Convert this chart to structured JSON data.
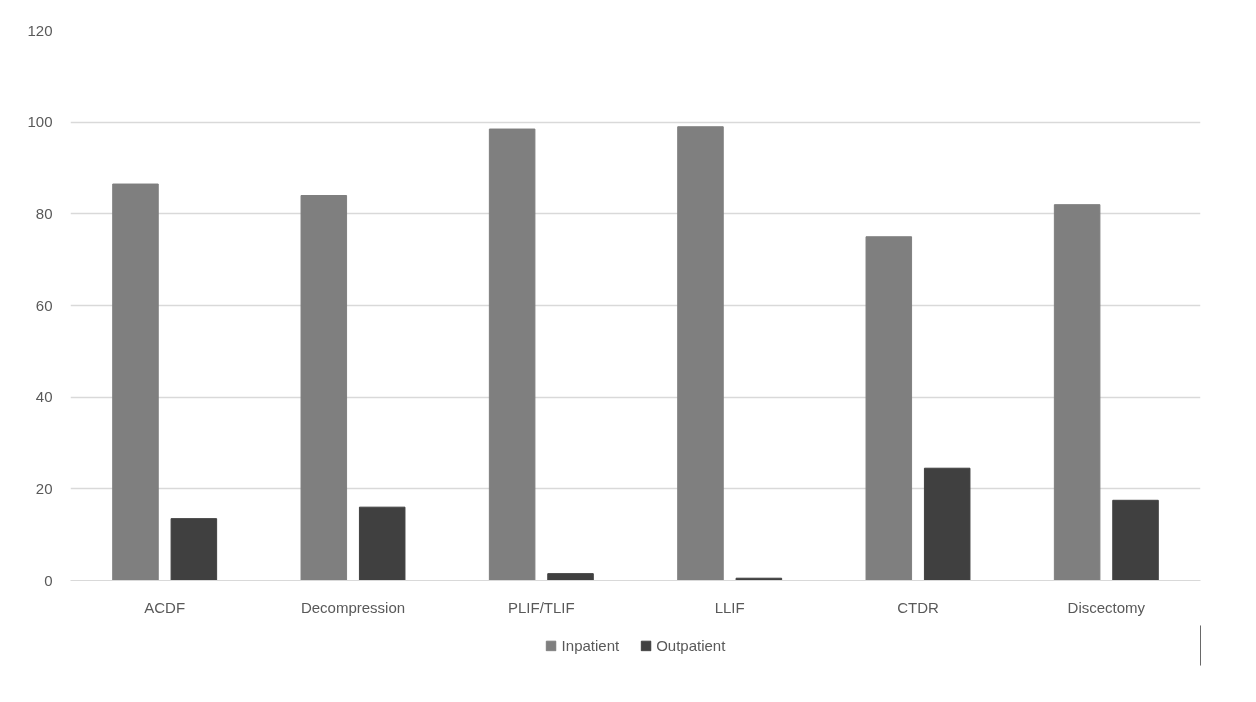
{
  "chart_data": {
    "type": "bar",
    "categories": [
      "ACDF",
      "Decompression",
      "PLIF/TLIF",
      "LLIF",
      "CTDR",
      "Discectomy"
    ],
    "series": [
      {
        "name": "Inpatient",
        "color": "#7f7f7f",
        "values": [
          86.5,
          84,
          98.5,
          99,
          75,
          82
        ]
      },
      {
        "name": "Outpatient",
        "color": "#404040",
        "values": [
          13.5,
          16,
          1.5,
          0.5,
          24.5,
          17.5
        ]
      }
    ],
    "ylim": [
      0,
      120
    ],
    "yticks": [
      0,
      20,
      40,
      60,
      80,
      100,
      120
    ],
    "grid": "y",
    "legend": "bottom"
  }
}
